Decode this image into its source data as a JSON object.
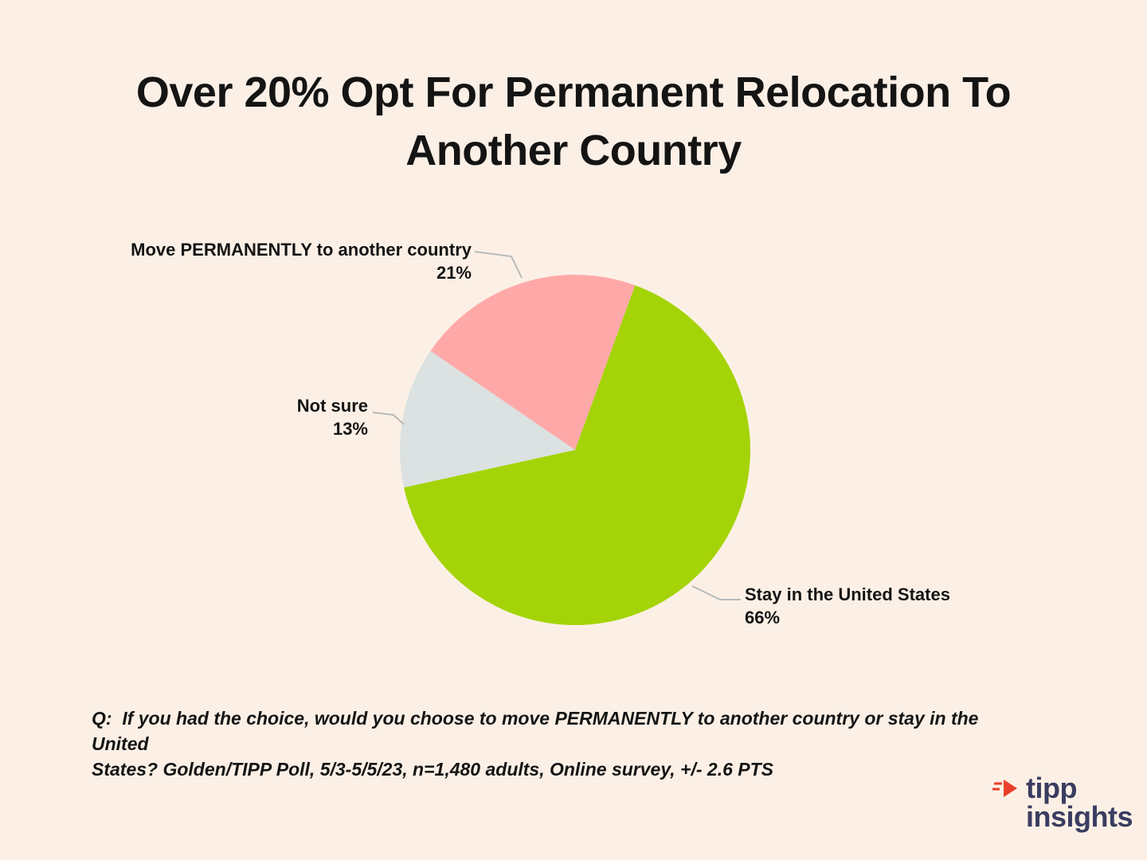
{
  "title": "Over 20% Opt For Permanent Relocation To Another Country",
  "title_lines": [
    "Over 20% Opt For Permanent Relocation To",
    "Another Country"
  ],
  "chart_data": {
    "type": "pie",
    "title": "Over 20% Opt For Permanent Relocation To Another Country",
    "start_angle_deg": 20,
    "legend_position": "callout-labels",
    "slices": [
      {
        "label": "Stay in the United States",
        "value": 66,
        "pct": "66%",
        "color": "#a4d407"
      },
      {
        "label": "Not sure",
        "value": 13,
        "pct": "13%",
        "color": "#dbe2e1"
      },
      {
        "label": "Move PERMANENTLY to another country",
        "value": 21,
        "pct": "21%",
        "color": "#ffa8a8"
      }
    ]
  },
  "footnote": "Q:  If you had the choice, would you choose to move PERMANENTLY to another country or stay in the United States? Golden/TIPP Poll, 5/3-5/5/23, n=1,480 adults, Online survey, +/- 2.6 PTS",
  "footnote_lines": [
    "Q:  If you had the choice, would you choose to move PERMANENTLY to another country or stay in the United",
    "States? Golden/TIPP Poll, 5/3-5/5/23, n=1,480 adults, Online survey, +/- 2.6 PTS"
  ],
  "logo": {
    "line1": "tipp",
    "line2": "insights"
  },
  "colors": {
    "background": "#fcf0e6",
    "leader_line": "#b6baba",
    "text": "#141414",
    "logo_text": "#3a3d60",
    "logo_accent": "#e8402a"
  }
}
